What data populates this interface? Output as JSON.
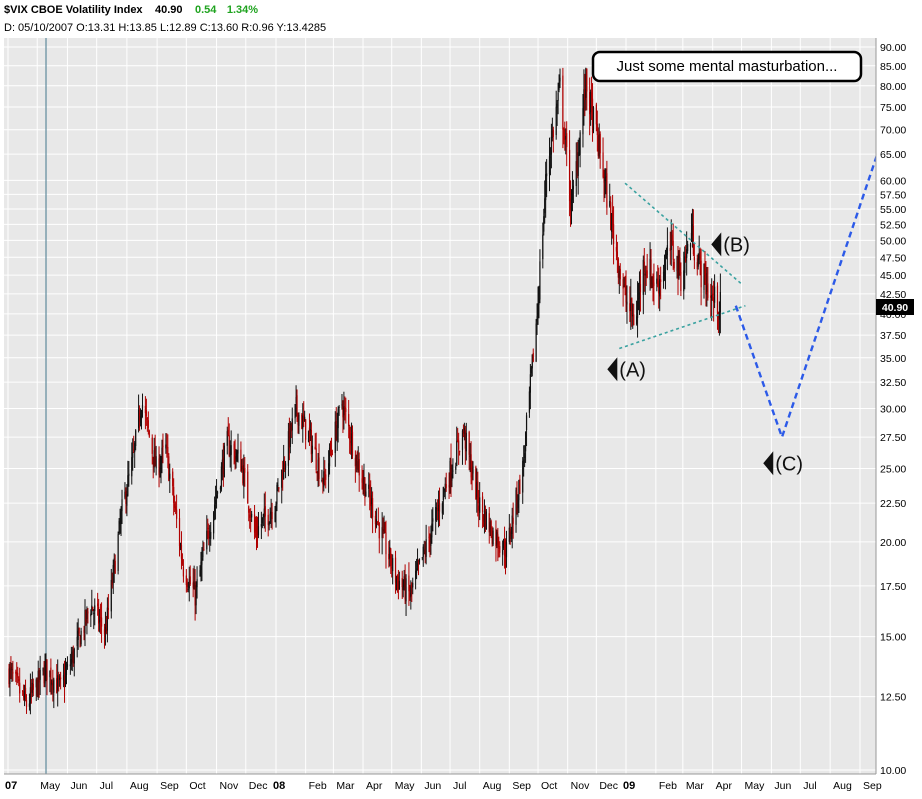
{
  "header": {
    "symbol": "$VIX CBOE Volatility Index",
    "last": "40.90",
    "change": "0.54",
    "change_pct": "1.34%",
    "line2": "D: 05/10/2007 O:13.31 H:13.85 L:12.89 C:13.60 R:0.96 Y:13.4285"
  },
  "chart_data": {
    "type": "candlestick",
    "title": "$VIX CBOE Volatility Index",
    "y_scale": "log",
    "ylim": [
      10,
      90
    ],
    "y_ticks": [
      "10.00",
      "12.50",
      "15.00",
      "17.50",
      "20.00",
      "22.50",
      "25.00",
      "27.50",
      "30.00",
      "32.50",
      "35.00",
      "37.50",
      "40.00",
      "42.50",
      "45.00",
      "47.50",
      "50.00",
      "52.50",
      "55.00",
      "57.50",
      "60.00",
      "65.00",
      "70.00",
      "75.00",
      "80.00",
      "85.00",
      "90.00"
    ],
    "x_ticks": [
      "07",
      "May",
      "Jun",
      "Jul",
      "Aug",
      "Sep",
      "Oct",
      "Nov",
      "Dec",
      "08",
      "Feb",
      "Mar",
      "Apr",
      "May",
      "Jun",
      "Jul",
      "Aug",
      "Sep",
      "Oct",
      "Nov",
      "Dec",
      "09",
      "Feb",
      "Mar",
      "Apr",
      "May",
      "Jun",
      "Jul",
      "Aug",
      "Sep"
    ],
    "bold_x_ticks": [
      "07",
      "08",
      "09"
    ],
    "last_value": "40.90",
    "grid": true,
    "price_path": [
      [
        "2007-04-02",
        13.5
      ],
      [
        "2007-04-20",
        12.2
      ],
      [
        "2007-05-10",
        13.6
      ],
      [
        "2007-05-25",
        12.8
      ],
      [
        "2007-06-10",
        14.5
      ],
      [
        "2007-06-25",
        16.5
      ],
      [
        "2007-07-10",
        15.2
      ],
      [
        "2007-07-27",
        22.0
      ],
      [
        "2007-08-08",
        26.0
      ],
      [
        "2007-08-16",
        30.8
      ],
      [
        "2007-08-31",
        25.0
      ],
      [
        "2007-09-10",
        26.5
      ],
      [
        "2007-09-28",
        18.5
      ],
      [
        "2007-10-10",
        17.0
      ],
      [
        "2007-10-25",
        21.0
      ],
      [
        "2007-11-12",
        27.0
      ],
      [
        "2007-11-26",
        25.5
      ],
      [
        "2007-12-10",
        20.5
      ],
      [
        "2007-12-31",
        22.5
      ],
      [
        "2008-01-22",
        30.0
      ],
      [
        "2008-02-05",
        27.5
      ],
      [
        "2008-02-20",
        24.0
      ],
      [
        "2008-03-10",
        30.5
      ],
      [
        "2008-03-28",
        25.0
      ],
      [
        "2008-04-15",
        21.5
      ],
      [
        "2008-05-05",
        18.0
      ],
      [
        "2008-05-20",
        17.0
      ],
      [
        "2008-06-05",
        19.5
      ],
      [
        "2008-06-25",
        23.5
      ],
      [
        "2008-07-15",
        28.0
      ],
      [
        "2008-07-31",
        22.5
      ],
      [
        "2008-08-15",
        20.5
      ],
      [
        "2008-08-29",
        19.5
      ],
      [
        "2008-09-15",
        25.0
      ],
      [
        "2008-09-30",
        40.0
      ],
      [
        "2008-10-10",
        62.0
      ],
      [
        "2008-10-24",
        79.5
      ],
      [
        "2008-11-05",
        55.0
      ],
      [
        "2008-11-20",
        80.5
      ],
      [
        "2008-12-05",
        65.0
      ],
      [
        "2008-12-20",
        50.0
      ],
      [
        "2008-12-31",
        42.0
      ],
      [
        "2009-01-10",
        39.0
      ],
      [
        "2009-01-20",
        47.0
      ],
      [
        "2009-02-02",
        43.5
      ],
      [
        "2009-02-17",
        49.0
      ],
      [
        "2009-02-27",
        45.0
      ],
      [
        "2009-03-10",
        51.0
      ],
      [
        "2009-03-20",
        45.5
      ],
      [
        "2009-03-31",
        42.0
      ],
      [
        "2009-04-09",
        40.9
      ]
    ],
    "trendlines": {
      "upper": [
        [
          "2008-12-31",
          59.5
        ],
        [
          "2009-05-01",
          43.8
        ]
      ],
      "lower": [
        [
          "2008-12-25",
          36.0
        ],
        [
          "2009-05-05",
          41.0
        ]
      ]
    },
    "projection": [
      [
        "2009-04-25",
        41.0
      ],
      [
        "2009-06-12",
        27.5
      ],
      [
        "2009-09-30",
        71.5
      ]
    ],
    "annotations": [
      {
        "label": "(A)",
        "date": "2008-12-25",
        "value": 33.8
      },
      {
        "label": "(B)",
        "date": "2009-04-12",
        "value": 49.4
      },
      {
        "label": "(C)",
        "date": "2009-06-05",
        "value": 25.4
      }
    ],
    "callout": "Just some mental masturbation..."
  },
  "colors": {
    "plot_bg": "#e8e8e8",
    "grid": "#ffffff",
    "up_candle": "#111111",
    "down_candle": "#b00000",
    "trendline": "#3aa2a0",
    "projection": "#2c5ae8",
    "change": "#1fa31f",
    "marker_line": "#5f8a9c"
  }
}
